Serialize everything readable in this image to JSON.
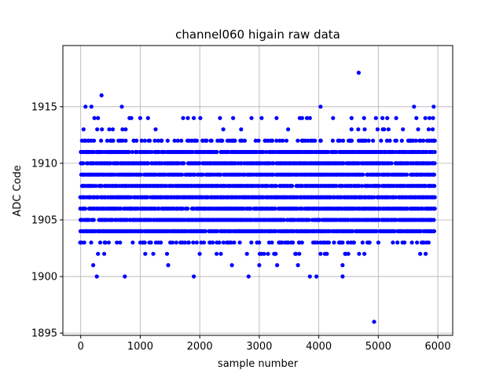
{
  "chart_data": {
    "type": "scatter",
    "title": "channel060 higain raw data",
    "xlabel": "sample number",
    "ylabel": "ADC Code",
    "xlim": [
      -300,
      6250
    ],
    "ylim": [
      1894.8,
      1920.4
    ],
    "xticks": [
      0,
      1000,
      2000,
      3000,
      4000,
      5000,
      6000
    ],
    "yticks": [
      1895,
      1900,
      1905,
      1910,
      1915
    ],
    "grid": true,
    "marker_color": "#0000ff",
    "n_samples": 6000,
    "bands": [
      {
        "y": 1904,
        "x_from": 0,
        "x_to": 5950,
        "density": 0.9
      },
      {
        "y": 1905,
        "x_from": 0,
        "x_to": 5950,
        "density": 0.9
      },
      {
        "y": 1906,
        "x_from": 0,
        "x_to": 5950,
        "density": 0.9
      },
      {
        "y": 1907,
        "x_from": 0,
        "x_to": 5950,
        "density": 0.9
      },
      {
        "y": 1908,
        "x_from": 0,
        "x_to": 5950,
        "density": 0.9
      },
      {
        "y": 1909,
        "x_from": 0,
        "x_to": 5950,
        "density": 0.9
      },
      {
        "y": 1910,
        "x_from": 0,
        "x_to": 5950,
        "density": 0.9
      },
      {
        "y": 1911,
        "x_from": 0,
        "x_to": 5950,
        "density": 0.85
      },
      {
        "y": 1903,
        "x_from": 0,
        "x_to": 5950,
        "density": 0.35
      },
      {
        "y": 1912,
        "x_from": 0,
        "x_to": 5950,
        "density": 0.35
      },
      {
        "y": 1902,
        "x_from": 0,
        "x_to": 5950,
        "density": 0.08
      },
      {
        "y": 1913,
        "x_from": 0,
        "x_to": 5950,
        "density": 0.08
      }
    ],
    "sparse_points": [
      [
        80,
        1915
      ],
      [
        180,
        1915
      ],
      [
        690,
        1915
      ],
      [
        4030,
        1915
      ],
      [
        5600,
        1915
      ],
      [
        5930,
        1915
      ],
      [
        350,
        1916
      ],
      [
        4670,
        1918
      ],
      [
        4930,
        1896
      ],
      [
        270,
        1900
      ],
      [
        740,
        1900
      ],
      [
        1900,
        1900
      ],
      [
        2820,
        1900
      ],
      [
        3850,
        1900
      ],
      [
        3960,
        1900
      ],
      [
        4400,
        1900
      ],
      [
        210,
        1901
      ],
      [
        1470,
        1901
      ],
      [
        2540,
        1901
      ],
      [
        3000,
        1901
      ],
      [
        3300,
        1901
      ],
      [
        3650,
        1901
      ],
      [
        4400,
        1901
      ],
      [
        230,
        1914
      ],
      [
        290,
        1914
      ],
      [
        820,
        1914
      ],
      [
        850,
        1914
      ],
      [
        1000,
        1914
      ],
      [
        1130,
        1914
      ],
      [
        1720,
        1914
      ],
      [
        1800,
        1914
      ],
      [
        1900,
        1914
      ],
      [
        2010,
        1914
      ],
      [
        2340,
        1914
      ],
      [
        2560,
        1914
      ],
      [
        2870,
        1914
      ],
      [
        3040,
        1914
      ],
      [
        3290,
        1914
      ],
      [
        3680,
        1914
      ],
      [
        3720,
        1914
      ],
      [
        3800,
        1914
      ],
      [
        3850,
        1914
      ],
      [
        4240,
        1914
      ],
      [
        4550,
        1914
      ],
      [
        4760,
        1914
      ],
      [
        4960,
        1914
      ],
      [
        5070,
        1914
      ],
      [
        5150,
        1914
      ],
      [
        5300,
        1914
      ],
      [
        5640,
        1914
      ],
      [
        5790,
        1914
      ],
      [
        5860,
        1914
      ],
      [
        5920,
        1914
      ]
    ]
  }
}
